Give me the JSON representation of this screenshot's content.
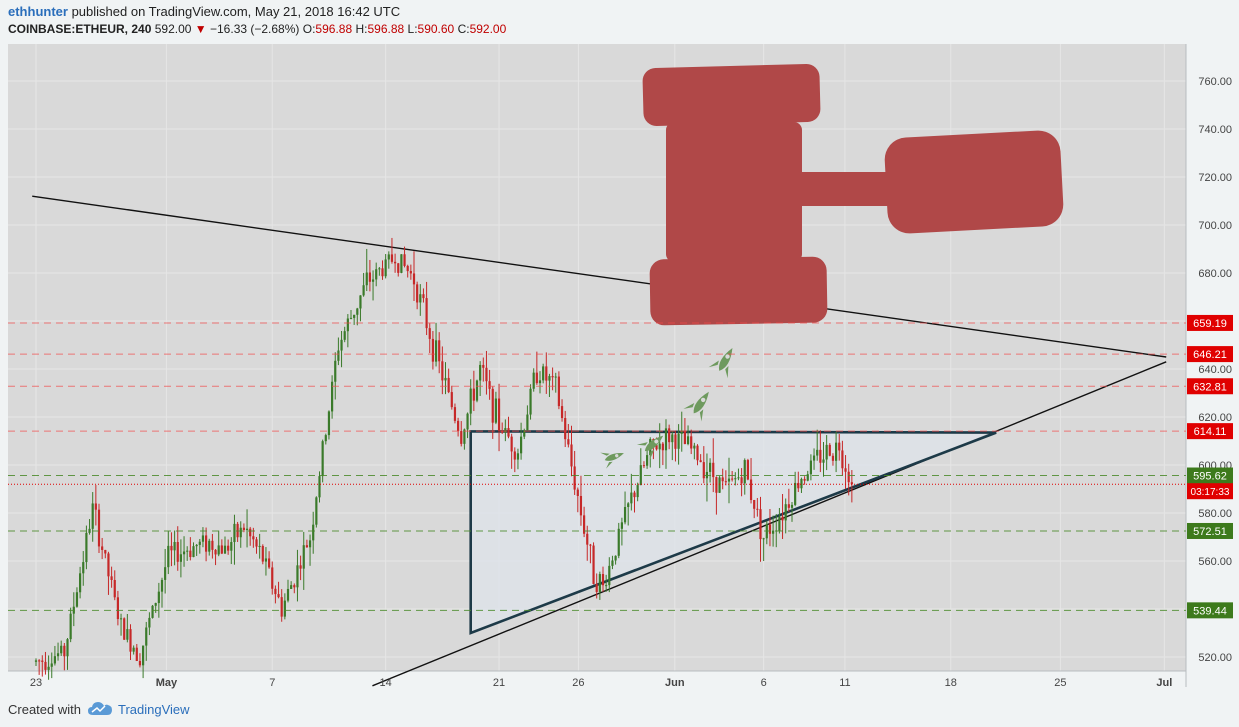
{
  "header": {
    "author": "ethhunter",
    "published_text": " published on TradingView.com, May 21, 2018 16:42 UTC",
    "symbol": "COINBASE:ETHEUR, 240",
    "last": "592.00",
    "change_arrow": "▼",
    "change": "−16.33 (−2.68%)",
    "o_label": "O:",
    "o": "596.88",
    "h_label": "H:",
    "h": "596.88",
    "l_label": "L:",
    "l": "590.60",
    "c_label": "C:",
    "c": "592.00"
  },
  "footer": {
    "created_with": "Created with",
    "brand": "TradingView",
    "logo_icon": "cloud-icon"
  },
  "colors": {
    "background": "#d9d9d9",
    "grid": "#e6e6e6",
    "candle_up": "#3a7a2a",
    "candle_down": "#c62828",
    "gavel": "#b04848",
    "rocket": "#6e9a5e",
    "resistance": "#f24a4a",
    "support": "#4a8a2a",
    "triangle_edge": "#1d3a48",
    "triangle_fill": "#dde3ea"
  },
  "chart_data": {
    "type": "candlestick",
    "symbol": "COINBASE:ETHEUR",
    "interval": "240",
    "xlabel": "",
    "ylabel": "",
    "ylim": [
      513,
      777
    ],
    "x_ticks": [
      "23",
      "May",
      "7",
      "14",
      "21",
      "26",
      "Jun",
      "6",
      "11",
      "18",
      "25",
      "Jul"
    ],
    "y_ticks": [
      "760.00",
      "740.00",
      "720.00",
      "700.00",
      "680.00",
      "660.00",
      "640.00",
      "620.00",
      "600.00",
      "580.00",
      "560.00",
      "540.00",
      "520.00"
    ],
    "price_path": [
      {
        "t": 0.0,
        "p": 518
      },
      {
        "t": 1.5,
        "p": 522
      },
      {
        "t": 3.0,
        "p": 582
      },
      {
        "t": 4.5,
        "p": 532
      },
      {
        "t": 5.5,
        "p": 521
      },
      {
        "t": 7.0,
        "p": 562
      },
      {
        "t": 9.0,
        "p": 568
      },
      {
        "t": 10.0,
        "p": 565
      },
      {
        "t": 11.0,
        "p": 574
      },
      {
        "t": 12.0,
        "p": 561
      },
      {
        "t": 13.0,
        "p": 540
      },
      {
        "t": 14.5,
        "p": 570
      },
      {
        "t": 16.0,
        "p": 650
      },
      {
        "t": 17.5,
        "p": 676
      },
      {
        "t": 19.0,
        "p": 687
      },
      {
        "t": 20.0,
        "p": 678
      },
      {
        "t": 21.0,
        "p": 650
      },
      {
        "t": 22.5,
        "p": 612
      },
      {
        "t": 23.5,
        "p": 640
      },
      {
        "t": 24.5,
        "p": 617
      },
      {
        "t": 25.5,
        "p": 606
      },
      {
        "t": 26.5,
        "p": 640
      },
      {
        "t": 27.5,
        "p": 632
      },
      {
        "t": 28.0,
        "p": 612
      },
      {
        "t": 29.5,
        "p": 555
      },
      {
        "t": 30.0,
        "p": 549
      },
      {
        "t": 30.5,
        "p": 562
      },
      {
        "t": 31.5,
        "p": 586
      },
      {
        "t": 32.5,
        "p": 606
      },
      {
        "t": 33.5,
        "p": 612
      },
      {
        "t": 34.5,
        "p": 608
      },
      {
        "t": 35.5,
        "p": 599
      },
      {
        "t": 36.5,
        "p": 590
      },
      {
        "t": 37.5,
        "p": 598
      },
      {
        "t": 38.5,
        "p": 570
      },
      {
        "t": 39.5,
        "p": 581
      },
      {
        "t": 40.5,
        "p": 595
      },
      {
        "t": 41.5,
        "p": 604
      },
      {
        "t": 42.5,
        "p": 608
      },
      {
        "t": 43.2,
        "p": 592
      }
    ],
    "last_price": 592.0,
    "countdown": "03:17:33",
    "horizontal_levels": [
      {
        "value": 659.19,
        "label": "659.19",
        "kind": "resistance"
      },
      {
        "value": 646.21,
        "label": "646.21",
        "kind": "resistance"
      },
      {
        "value": 632.81,
        "label": "632.81",
        "kind": "resistance"
      },
      {
        "value": 614.11,
        "label": "614.11",
        "kind": "resistance"
      },
      {
        "value": 595.62,
        "label": "595.62",
        "kind": "support"
      },
      {
        "value": 572.51,
        "label": "572.51",
        "kind": "support"
      },
      {
        "value": 539.44,
        "label": "539.44",
        "kind": "support"
      }
    ],
    "drawings": {
      "large_triangle": {
        "upper_start": {
          "t": -0.2,
          "p": 712
        },
        "upper_end": {
          "t": 59.8,
          "p": 645
        },
        "lower_start": {
          "t": 17.8,
          "p": 508
        },
        "apex": {
          "t": 59.8,
          "p": 643
        }
      },
      "small_triangle": {
        "top_left": {
          "t": 23.0,
          "p": 614
        },
        "top_right": {
          "t": 50.8,
          "p": 613.5
        },
        "bottom_left": {
          "t": 23.0,
          "p": 530
        }
      },
      "rockets": 4,
      "gavel": 1
    }
  }
}
